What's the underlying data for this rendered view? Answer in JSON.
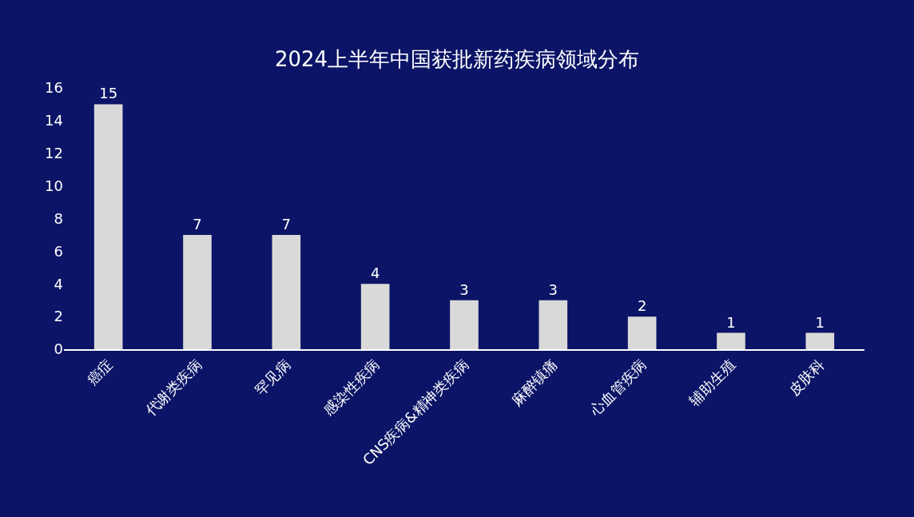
{
  "chart_data": {
    "type": "bar",
    "title": "2024上半年中国获批新药疾病领域分布",
    "categories": [
      "癌症",
      "代谢类疾病",
      "罕见病",
      "感染性疾病",
      "CNS疾病&精神类疾病",
      "麻醉镇痛",
      "心血管疾病",
      "辅助生殖",
      "皮肤科"
    ],
    "values": [
      15,
      7,
      7,
      4,
      3,
      3,
      2,
      1,
      1
    ],
    "color": "#d9d9d9",
    "ylim": [
      0,
      16
    ],
    "yticks": [
      0,
      2,
      4,
      6,
      8,
      10,
      12,
      14,
      16
    ],
    "grid": false,
    "legend": false,
    "data_labels": true
  }
}
